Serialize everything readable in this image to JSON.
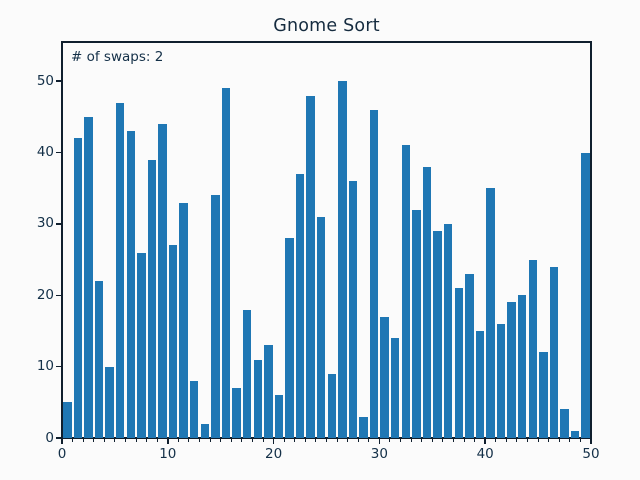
{
  "window": {
    "background": "#fbfbfb"
  },
  "colors": {
    "bar": "#1f77b4",
    "text": "#143048",
    "title_text": "#152b3f",
    "spine": "#101f2e"
  },
  "chart_data": {
    "type": "bar",
    "title": "Gnome Sort",
    "annotation": "# of swaps: 2",
    "xlabel": "",
    "ylabel": "",
    "x": [
      0,
      1,
      2,
      3,
      4,
      5,
      6,
      7,
      8,
      9,
      10,
      11,
      12,
      13,
      14,
      15,
      16,
      17,
      18,
      19,
      20,
      21,
      22,
      23,
      24,
      25,
      26,
      27,
      28,
      29,
      30,
      31,
      32,
      33,
      34,
      35,
      36,
      37,
      38,
      39,
      40,
      41,
      42,
      43,
      44,
      45,
      46,
      47,
      48,
      49
    ],
    "values": [
      5,
      42,
      45,
      22,
      10,
      47,
      43,
      26,
      39,
      44,
      27,
      33,
      8,
      2,
      34,
      49,
      7,
      18,
      11,
      13,
      6,
      28,
      37,
      48,
      31,
      9,
      50,
      36,
      3,
      46,
      17,
      14,
      41,
      32,
      38,
      29,
      30,
      21,
      23,
      15,
      35,
      16,
      19,
      20,
      25,
      12,
      24,
      4,
      1,
      40
    ],
    "bar_center_offset": 0.5,
    "xlim": [
      0,
      50
    ],
    "ylim": [
      0,
      55.5
    ],
    "xticks": [
      0,
      10,
      20,
      30,
      40,
      50
    ],
    "yticks": [
      0,
      10,
      20,
      30,
      40,
      50
    ],
    "minor_xtick_step": 1,
    "grid": false,
    "legend": "none"
  }
}
